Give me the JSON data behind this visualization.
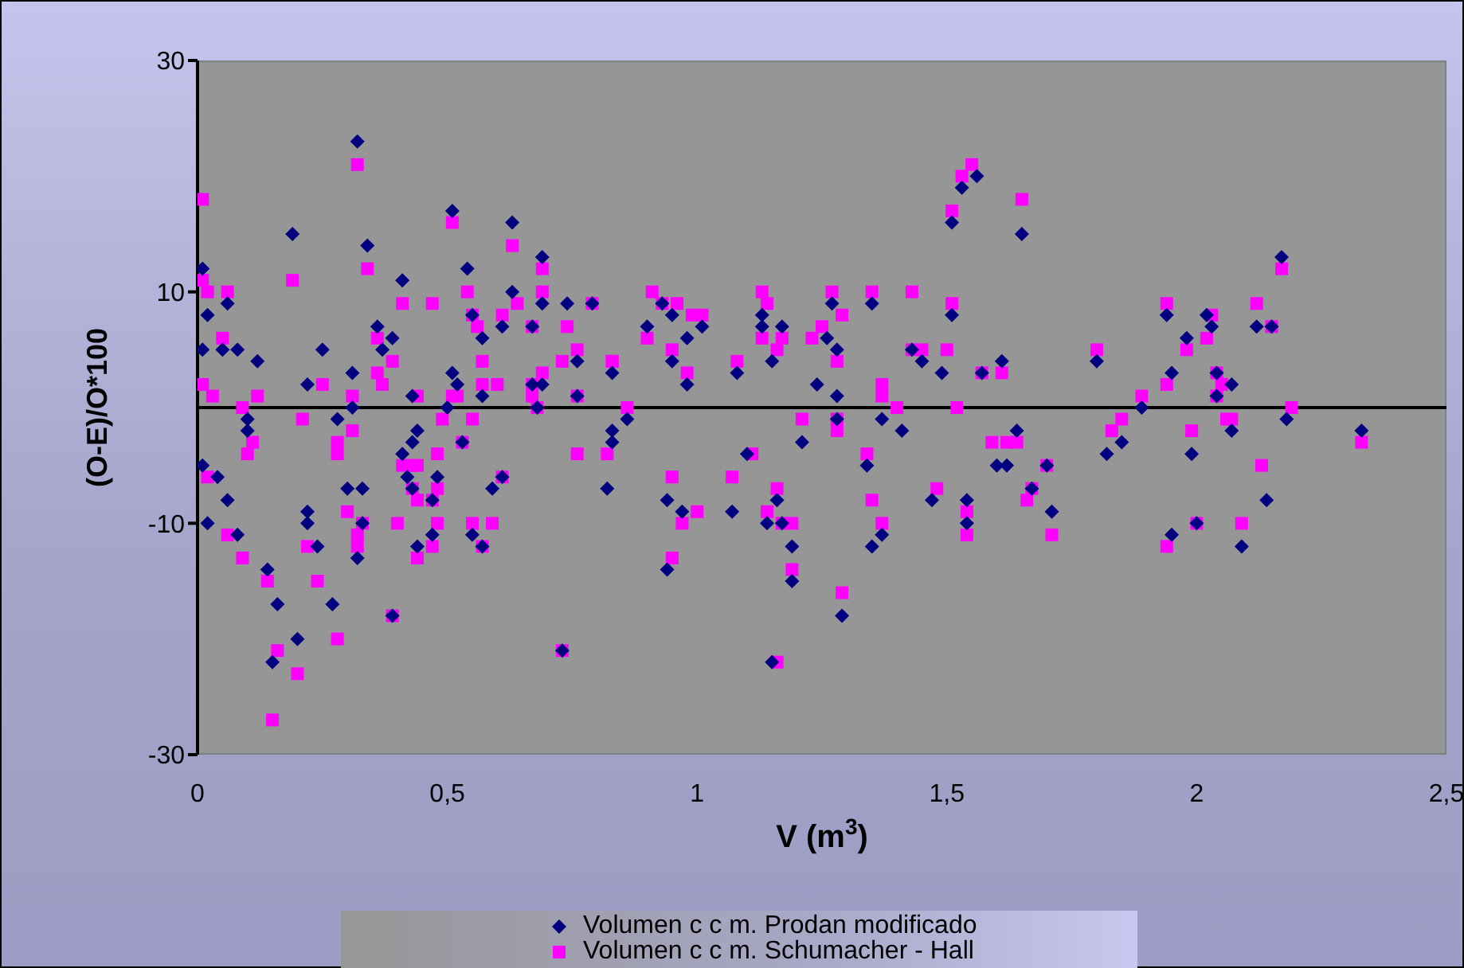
{
  "chart_data": {
    "type": "scatter",
    "xlabel": "V (m$^{3}$)",
    "ylabel": "(O-E)/O*100",
    "xlim": [
      0,
      2.5
    ],
    "xticks": [
      0,
      {
        "value": 0.5,
        "label": "0,5"
      },
      1,
      {
        "value": 1.5,
        "label": "1,5"
      },
      2,
      {
        "value": 2.5,
        "label": "2,5"
      }
    ],
    "ylim": [
      -30,
      30
    ],
    "yticks": [
      -30,
      -10,
      10,
      30
    ],
    "grid": false,
    "legend": "bottom",
    "ref_lines": [
      {
        "axis": "y",
        "value": 0,
        "color": "#000000"
      }
    ],
    "series": [
      {
        "name": "Volumen c c m. Prodan modificado",
        "color": "#000080",
        "marker": "diamond",
        "x": [
          0.32,
          0.19,
          0.34,
          0.01,
          0.06,
          0.02,
          0.01,
          0.05,
          0.08,
          0.12,
          0.25,
          0.22,
          0.31,
          0.31,
          0.1,
          0.1,
          0.28,
          0.01,
          0.04,
          0.06,
          0.02,
          0.08,
          0.14,
          0.16,
          0.2,
          0.15,
          0.27,
          0.22,
          0.22,
          0.24,
          0.3,
          0.33,
          0.33,
          0.32,
          0.39,
          0.36,
          0.37,
          0.39,
          0.41,
          0.51,
          0.54,
          0.63,
          0.69,
          0.63,
          0.69,
          0.55,
          0.57,
          0.51,
          0.52,
          0.61,
          0.67,
          0.74,
          0.79,
          0.76,
          0.83,
          0.69,
          0.67,
          0.57,
          0.43,
          0.44,
          0.43,
          0.41,
          0.42,
          0.48,
          0.43,
          0.47,
          0.44,
          0.47,
          0.55,
          0.57,
          0.59,
          0.61,
          0.73,
          0.82,
          0.83,
          0.5,
          0.53,
          0.68,
          0.76,
          0.9,
          0.93,
          0.95,
          0.98,
          1.01,
          0.95,
          0.98,
          1.08,
          1.13,
          1.13,
          1.17,
          1.15,
          1.24,
          1.26,
          1.27,
          1.28,
          1.28,
          1.28,
          1.35,
          1.43,
          1.45,
          1.49,
          1.51,
          1.57,
          1.61,
          1.37,
          1.41,
          0.86,
          0.83,
          1.21,
          1.1,
          1.34,
          0.94,
          0.97,
          1.07,
          1.16,
          1.14,
          1.17,
          1.19,
          1.19,
          0.94,
          1.29,
          1.15,
          1.35,
          1.37,
          1.47,
          1.54,
          1.54,
          1.6,
          1.62,
          1.64,
          1.51,
          1.53,
          1.56,
          1.65,
          1.8,
          1.89,
          1.94,
          1.95,
          1.98,
          2.02,
          2.03,
          2.04,
          2.07,
          2.04,
          2.07,
          2.12,
          2.15,
          2.17,
          2.18,
          2.33,
          1.85,
          1.82,
          1.99,
          1.7,
          1.67,
          1.71,
          1.95,
          2.0,
          2.09,
          2.14
        ],
        "values": [
          23,
          15,
          14,
          12,
          9,
          8,
          5,
          5,
          5,
          4,
          5,
          2,
          3,
          0,
          -1,
          -2,
          -1,
          -5,
          -6,
          -8,
          -10,
          -11,
          -14,
          -17,
          -20,
          -22,
          -17,
          -9,
          -10,
          -12,
          -7,
          -7,
          -10,
          -13,
          -18,
          7,
          5,
          6,
          11,
          17,
          12,
          16,
          13,
          10,
          9,
          8,
          6,
          3,
          2,
          7,
          7,
          9,
          9,
          4,
          3,
          2,
          2,
          1,
          1,
          -2,
          -3,
          -4,
          -6,
          -6,
          -7,
          -8,
          -12,
          -11,
          -11,
          -12,
          -7,
          -6,
          -21,
          -7,
          -2,
          0,
          -3,
          0,
          1,
          7,
          9,
          8,
          6,
          7,
          4,
          2,
          3,
          8,
          7,
          7,
          4,
          2,
          6,
          9,
          5,
          1,
          -1,
          9,
          5,
          4,
          3,
          8,
          3,
          4,
          -1,
          -2,
          -1,
          -3,
          -3,
          -4,
          -5,
          -8,
          -9,
          -9,
          -8,
          -10,
          -10,
          -12,
          -15,
          -14,
          -18,
          -22,
          -12,
          -11,
          -8,
          -8,
          -10,
          -5,
          -5,
          -2,
          16,
          19,
          20,
          15,
          4,
          0,
          8,
          3,
          6,
          8,
          7,
          3,
          2,
          1,
          -2,
          7,
          7,
          13,
          -1,
          -2,
          -3,
          -4,
          -4,
          -5,
          -7,
          -9,
          -11,
          -10,
          -12,
          -8
        ]
      },
      {
        "name": "Volumen c c m. Schumacher - Hall",
        "color": "#ff00ff",
        "marker": "square",
        "x": [
          0.01,
          0.32,
          0.01,
          0.02,
          0.06,
          0.19,
          0.34,
          0.05,
          0.01,
          0.03,
          0.09,
          0.12,
          0.25,
          0.21,
          0.11,
          0.1,
          0.02,
          0.06,
          0.09,
          0.14,
          0.24,
          0.16,
          0.2,
          0.15,
          0.28,
          0.3,
          0.33,
          0.22,
          0.32,
          0.32,
          0.4,
          0.39,
          0.28,
          0.28,
          0.31,
          0.31,
          0.36,
          0.37,
          0.36,
          0.39,
          0.41,
          0.47,
          0.51,
          0.63,
          0.54,
          0.69,
          0.69,
          0.64,
          0.55,
          0.56,
          0.61,
          0.67,
          0.74,
          0.79,
          0.57,
          0.6,
          0.57,
          0.69,
          0.67,
          0.67,
          0.68,
          0.73,
          0.76,
          0.83,
          0.76,
          0.44,
          0.51,
          0.52,
          0.49,
          0.55,
          0.53,
          0.41,
          0.43,
          0.44,
          0.48,
          0.43,
          0.48,
          0.47,
          0.44,
          0.48,
          0.44,
          0.47,
          0.55,
          0.57,
          0.59,
          0.61,
          0.73,
          0.76,
          0.82,
          0.91,
          0.93,
          0.96,
          0.99,
          1.01,
          0.9,
          0.95,
          0.98,
          0.83,
          1.08,
          1.13,
          1.14,
          1.13,
          1.17,
          1.16,
          1.27,
          1.29,
          1.25,
          1.23,
          1.28,
          1.35,
          1.43,
          1.51,
          1.43,
          1.45,
          1.5,
          1.57,
          1.61,
          1.37,
          1.37,
          1.4,
          1.52,
          0.86,
          1.21,
          1.28,
          1.28,
          1.11,
          1.34,
          1.59,
          1.62,
          1.64,
          0.95,
          1.07,
          1.16,
          1.35,
          1.48,
          1.0,
          0.97,
          1.14,
          1.17,
          1.19,
          1.37,
          1.54,
          1.54,
          0.95,
          1.19,
          1.29,
          1.16,
          1.51,
          1.53,
          1.55,
          1.65,
          1.8,
          1.89,
          1.94,
          1.94,
          1.98,
          2.03,
          2.02,
          2.12,
          2.15,
          2.17,
          2.04,
          2.05,
          2.04,
          2.07,
          2.06,
          2.19,
          2.33,
          1.85,
          1.83,
          1.99,
          1.7,
          2.13,
          1.66,
          1.67,
          1.71,
          2.0,
          2.09,
          1.94
        ],
        "values": [
          18,
          21,
          11,
          10,
          10,
          11,
          12,
          6,
          2,
          1,
          0,
          1,
          2,
          -1,
          -3,
          -4,
          -6,
          -11,
          -13,
          -15,
          -15,
          -21,
          -23,
          -27,
          -20,
          -9,
          -10,
          -12,
          -12,
          -11,
          -10,
          -18,
          -3,
          -4,
          -2,
          1,
          3,
          2,
          6,
          4,
          9,
          9,
          16,
          14,
          10,
          12,
          10,
          9,
          8,
          7,
          8,
          7,
          7,
          9,
          4,
          2,
          2,
          3,
          2,
          1,
          0,
          4,
          5,
          4,
          1,
          1,
          1,
          1,
          -1,
          -1,
          -3,
          -5,
          -5,
          -5,
          -4,
          -7,
          -7,
          -8,
          -8,
          -10,
          -13,
          -12,
          -10,
          -12,
          -10,
          -6,
          -21,
          -4,
          -4,
          10,
          9,
          9,
          8,
          8,
          6,
          5,
          3,
          4,
          4,
          10,
          9,
          6,
          6,
          5,
          10,
          8,
          7,
          6,
          4,
          10,
          10,
          9,
          5,
          5,
          5,
          3,
          3,
          2,
          1,
          0,
          0,
          0,
          -1,
          -1,
          -2,
          -4,
          -4,
          -3,
          -3,
          -3,
          -6,
          -6,
          -7,
          -8,
          -7,
          -9,
          -10,
          -9,
          -10,
          -10,
          -10,
          -9,
          -11,
          -13,
          -14,
          -16,
          -22,
          17,
          20,
          21,
          18,
          5,
          1,
          9,
          2,
          5,
          8,
          6,
          9,
          7,
          12,
          3,
          2,
          1,
          -1,
          -1,
          0,
          -3,
          -1,
          -2,
          -2,
          -5,
          -5,
          -8,
          -7,
          -11,
          -10,
          -10,
          -12
        ]
      }
    ]
  }
}
